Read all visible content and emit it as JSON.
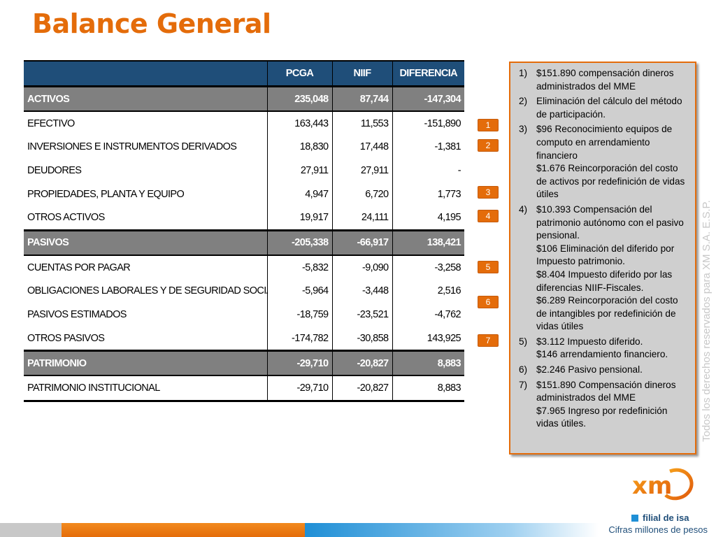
{
  "title": "Balance General",
  "colors": {
    "title": "#e46c0a",
    "header_bg": "#1f4e79",
    "section_bg": "#808080",
    "accent": "#e46c0a"
  },
  "table": {
    "columns": [
      "",
      "PCGA",
      "NIIF",
      "DIFERENCIA"
    ],
    "rows": [
      {
        "type": "sec",
        "label": "ACTIVOS",
        "pcga": "235,048",
        "niif": "87,744",
        "dif": "-147,304"
      },
      {
        "type": "row",
        "label": "EFECTIVO",
        "pcga": "163,443",
        "niif": "11,553",
        "dif": "-151,890"
      },
      {
        "type": "row",
        "label": "INVERSIONES E INSTRUMENTOS DERIVADOS",
        "pcga": "18,830",
        "niif": "17,448",
        "dif": "-1,381"
      },
      {
        "type": "row",
        "label": "DEUDORES",
        "pcga": "27,911",
        "niif": "27,911",
        "dif": "-"
      },
      {
        "type": "row",
        "label": "PROPIEDADES, PLANTA Y EQUIPO",
        "pcga": "4,947",
        "niif": "6,720",
        "dif": "1,773"
      },
      {
        "type": "row",
        "label": "OTROS ACTIVOS",
        "pcga": "19,917",
        "niif": "24,111",
        "dif": "4,195"
      },
      {
        "type": "sec",
        "label": "PASIVOS",
        "pcga": "-205,338",
        "niif": "-66,917",
        "dif": "138,421"
      },
      {
        "type": "row",
        "label": "CUENTAS POR PAGAR",
        "pcga": "-5,832",
        "niif": "-9,090",
        "dif": "-3,258"
      },
      {
        "type": "row",
        "label": "OBLIGACIONES LABORALES Y DE SEGURIDAD SOCIAL INTEGRAL",
        "pcga": "-5,964",
        "niif": "-3,448",
        "dif": "2,516"
      },
      {
        "type": "row",
        "label": "PASIVOS ESTIMADOS",
        "pcga": "-18,759",
        "niif": "-23,521",
        "dif": "-4,762"
      },
      {
        "type": "row",
        "label": "OTROS PASIVOS",
        "pcga": "-174,782",
        "niif": "-30,858",
        "dif": "143,925"
      },
      {
        "type": "sec",
        "label": "PATRIMONIO",
        "pcga": "-29,710",
        "niif": "-20,827",
        "dif": "8,883"
      },
      {
        "type": "row",
        "label": "PATRIMONIO INSTITUCIONAL",
        "pcga": "-29,710",
        "niif": "-20,827",
        "dif": "8,883"
      }
    ]
  },
  "badges": [
    "1",
    "2",
    "3",
    "4",
    "5",
    "6",
    "7"
  ],
  "notes": [
    {
      "num": "1)",
      "lines": [
        "$151.890 compensación dineros administrados del MME"
      ]
    },
    {
      "num": "2)",
      "lines": [
        "Eliminación del cálculo del método de participación."
      ]
    },
    {
      "num": "3)",
      "lines": [
        "$96  Reconocimiento equipos de computo en arrendamiento financiero",
        "$1.676 Reincorporación del costo de activos por redefinición de vidas útiles"
      ]
    },
    {
      "num": "4)",
      "lines": [
        "$10.393 Compensación del patrimonio autónomo con el pasivo pensional.",
        "$106 Eliminación del diferido por Impuesto patrimonio.",
        "$8.404 Impuesto diferido por las diferencias NIIF-Fiscales.",
        "$6.289 Reincorporación del costo de intangibles por redefinición de vidas útiles"
      ]
    },
    {
      "num": "5)",
      "lines": [
        "$3.112 Impuesto diferido.",
        "$146 arrendamiento financiero."
      ]
    },
    {
      "num": "6)",
      "lines": [
        "$2.246 Pasivo pensional."
      ]
    },
    {
      "num": "7)",
      "lines": [
        "$151.890 Compensación dineros administrados del MME",
        "$7.965 Ingreso por redefinición vidas útiles."
      ]
    }
  ],
  "side_text": "Todos los derechos reservados para XM S.A. E.S.P.",
  "logo": {
    "text": "xm",
    "tagline": "filial de isa"
  },
  "footnote": "Cifras millones de pesos"
}
